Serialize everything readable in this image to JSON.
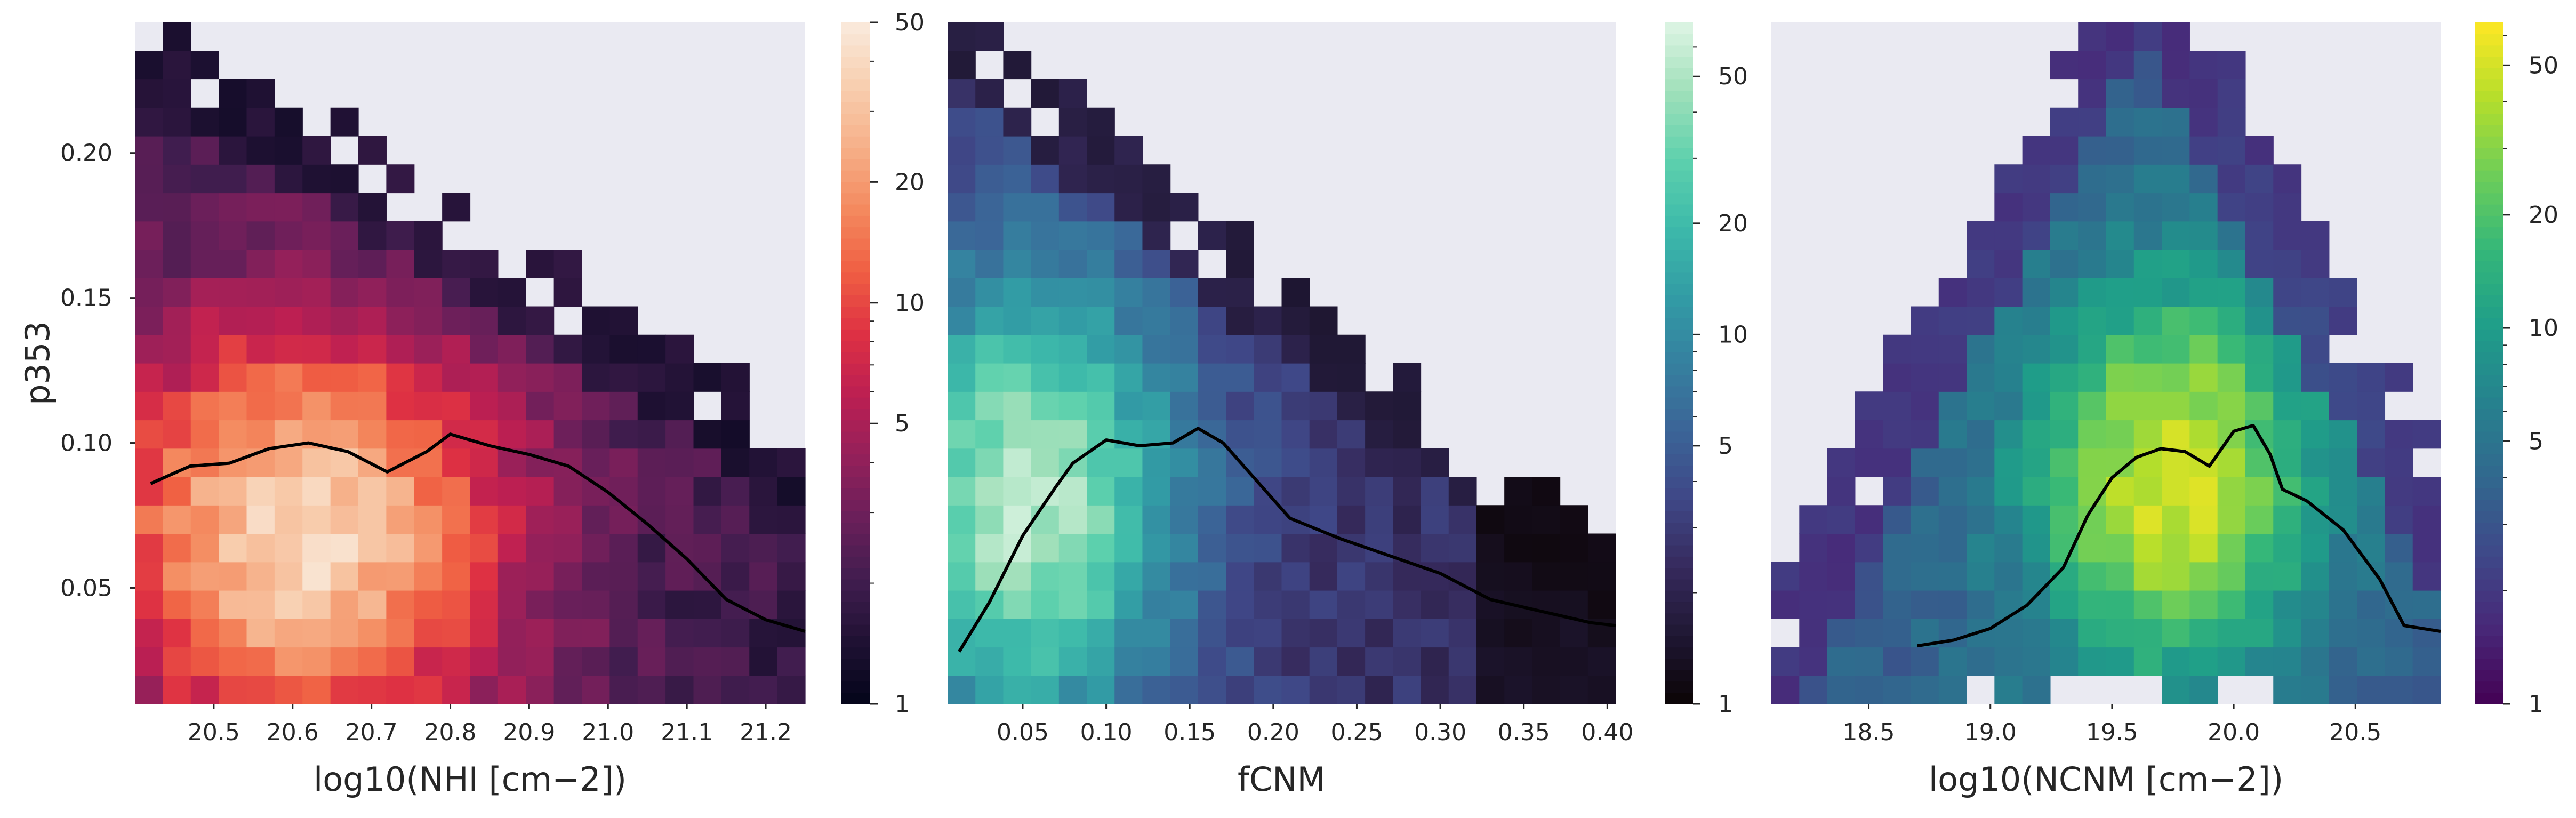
{
  "chart_data": [
    {
      "type": "heatmap",
      "xlabel": "log10(NHI [cm−2])",
      "ylabel": "p353",
      "x_range": [
        20.4,
        21.25
      ],
      "y_range": [
        0.01,
        0.245
      ],
      "x_ticks": [
        "20.5",
        "20.6",
        "20.7",
        "20.8",
        "20.9",
        "21.0",
        "21.1",
        "21.2"
      ],
      "y_ticks": [
        "0.05",
        "0.10",
        "0.15",
        "0.20"
      ],
      "colormap": "rocket",
      "colorbar": {
        "scale": "log",
        "min": 1,
        "max": 50,
        "ticks": [
          "1",
          "5",
          "10",
          "20",
          "50"
        ]
      },
      "grid": {
        "cols": 24,
        "rows": 24
      },
      "binned_median_line": {
        "x": [
          20.42,
          20.47,
          20.52,
          20.57,
          20.62,
          20.67,
          20.72,
          20.77,
          20.8,
          20.85,
          20.9,
          20.95,
          21.0,
          21.05,
          21.1,
          21.15,
          21.2,
          21.25
        ],
        "y": [
          0.086,
          0.092,
          0.093,
          0.098,
          0.1,
          0.097,
          0.09,
          0.097,
          0.103,
          0.099,
          0.096,
          0.092,
          0.083,
          0.072,
          0.06,
          0.046,
          0.039,
          0.035
        ]
      }
    },
    {
      "type": "heatmap",
      "xlabel": "fCNM",
      "ylabel": "",
      "x_range": [
        0.005,
        0.405
      ],
      "y_range": [
        0.01,
        0.245
      ],
      "x_ticks": [
        "0.05",
        "0.10",
        "0.15",
        "0.20",
        "0.25",
        "0.30",
        "0.35",
        "0.40"
      ],
      "y_ticks": [],
      "colormap": "mako",
      "colorbar": {
        "scale": "log",
        "min": 1,
        "max": 70,
        "ticks": [
          "1",
          "5",
          "10",
          "20",
          "50"
        ]
      },
      "grid": {
        "cols": 24,
        "rows": 24
      },
      "binned_median_line": {
        "x": [
          0.012,
          0.03,
          0.05,
          0.07,
          0.08,
          0.1,
          0.12,
          0.14,
          0.155,
          0.17,
          0.19,
          0.21,
          0.24,
          0.27,
          0.3,
          0.33,
          0.36,
          0.39,
          0.405
        ],
        "y": [
          0.028,
          0.045,
          0.068,
          0.085,
          0.093,
          0.101,
          0.099,
          0.1,
          0.105,
          0.1,
          0.087,
          0.074,
          0.067,
          0.061,
          0.055,
          0.046,
          0.042,
          0.038,
          0.037
        ]
      }
    },
    {
      "type": "heatmap",
      "xlabel": "log10(NCNM [cm−2])",
      "ylabel": "",
      "x_range": [
        18.1,
        20.85
      ],
      "y_range": [
        0.01,
        0.245
      ],
      "x_ticks": [
        "18.5",
        "19.0",
        "19.5",
        "20.0",
        "20.5"
      ],
      "y_ticks": [],
      "colormap": "viridis",
      "colorbar": {
        "scale": "log",
        "min": 1,
        "max": 65,
        "ticks": [
          "1",
          "5",
          "10",
          "20",
          "50"
        ]
      },
      "grid": {
        "cols": 24,
        "rows": 24
      },
      "binned_median_line": {
        "x": [
          18.7,
          18.85,
          19.0,
          19.15,
          19.3,
          19.4,
          19.5,
          19.6,
          19.7,
          19.8,
          19.9,
          20.0,
          20.08,
          20.15,
          20.2,
          20.3,
          20.45,
          20.6,
          20.7,
          20.85
        ],
        "y": [
          0.03,
          0.032,
          0.036,
          0.044,
          0.057,
          0.075,
          0.088,
          0.095,
          0.098,
          0.097,
          0.092,
          0.104,
          0.106,
          0.096,
          0.084,
          0.08,
          0.07,
          0.053,
          0.037,
          0.035
        ]
      }
    }
  ]
}
